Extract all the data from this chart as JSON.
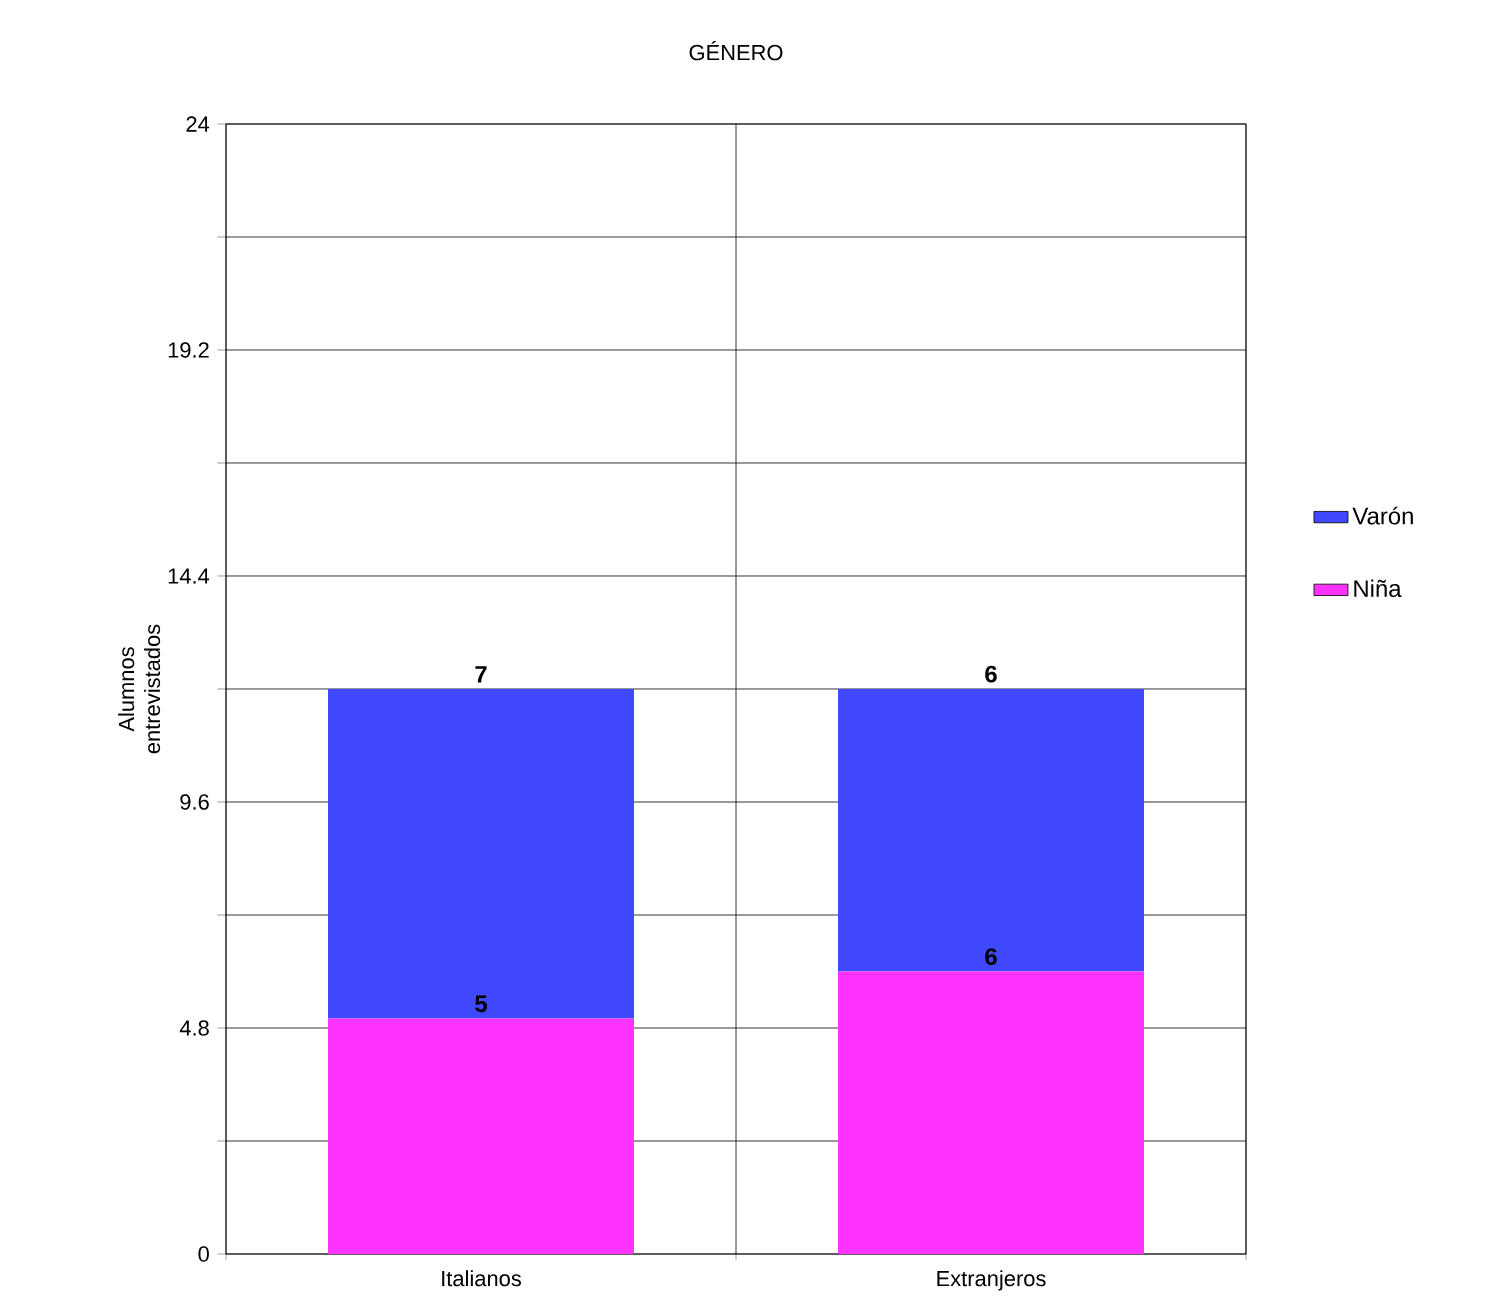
{
  "chart_data": {
    "type": "bar",
    "title": "GÉNERO",
    "ylabel": "Alumnos entrevistados",
    "categories": [
      "Italianos",
      "Extranjeros"
    ],
    "stacked": true,
    "series": [
      {
        "name": "Niña",
        "color": "#ff33ff",
        "values": [
          5,
          6
        ]
      },
      {
        "name": "Varón",
        "color": "#3f48fc",
        "values": [
          7,
          6
        ]
      }
    ],
    "ylim": [
      0,
      24
    ],
    "yticks": [
      0,
      {
        "value": 2.4,
        "label": null
      },
      4.8,
      {
        "value": 7.2,
        "label": null
      },
      9.6,
      {
        "value": 12,
        "label": null
      },
      14.4,
      {
        "value": 16.8,
        "label": null
      },
      19.2,
      {
        "value": 21.6,
        "label": null
      },
      24
    ],
    "grid": true,
    "legend": "right",
    "data_labels": true
  }
}
